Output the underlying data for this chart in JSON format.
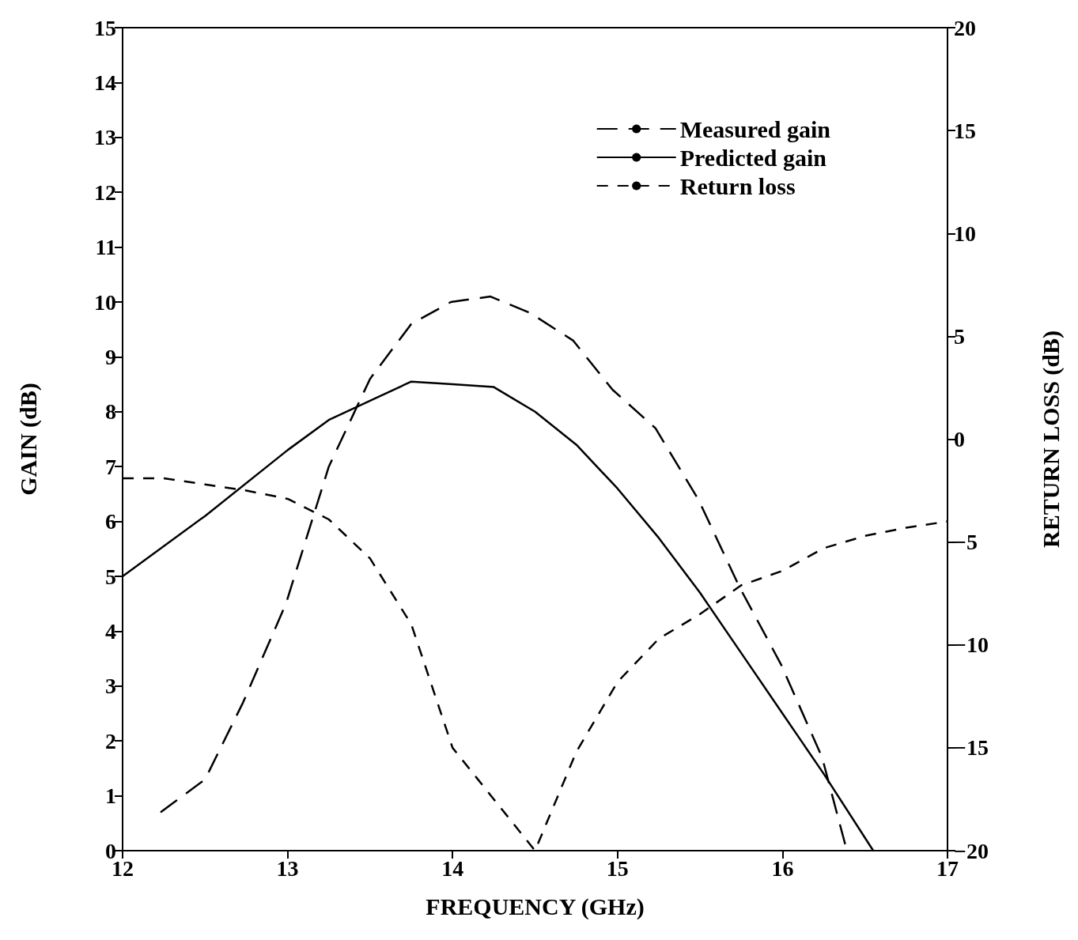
{
  "chart_data": {
    "type": "line",
    "xlabel": "FREQUENCY (GHz)",
    "ylabel": "GAIN (dB)",
    "y2label": "RETURN LOSS (dB)",
    "xlim": [
      12,
      17
    ],
    "xticks": [
      12,
      13,
      14,
      15,
      16,
      17
    ],
    "ylim": [
      0,
      15
    ],
    "yticks": [
      0,
      1,
      2,
      3,
      4,
      5,
      6,
      7,
      8,
      9,
      10,
      11,
      12,
      13,
      14,
      15
    ],
    "y2lim": [
      -20,
      20
    ],
    "y2ticks": [
      -20,
      -15,
      -10,
      -5,
      0,
      5,
      10,
      15,
      20
    ],
    "grid": false,
    "legend": "top right",
    "marker": "none",
    "series": [
      {
        "name": "Measured gain",
        "color": "#000000",
        "line_style": "dashed",
        "x": [
          12.23,
          12.5,
          12.73,
          12.99,
          13.25,
          13.5,
          13.75,
          13.99,
          14.23,
          14.47,
          14.73,
          14.97,
          15.23,
          15.49,
          15.74,
          15.99,
          16.24,
          16.39
        ],
        "values": [
          0.7,
          1.3,
          2.7,
          4.5,
          7.0,
          8.6,
          9.6,
          10.0,
          10.1,
          9.8,
          9.3,
          8.4,
          7.7,
          6.4,
          4.8,
          3.4,
          1.7,
          0
        ]
      },
      {
        "name": "Predicted gain",
        "color": "#000000",
        "line_style": "solid",
        "x": [
          12,
          12.5,
          13,
          13.25,
          13.5,
          13.75,
          14,
          14.25,
          14.5,
          14.75,
          15,
          15.25,
          15.5,
          15.75,
          16,
          16.25,
          16.55
        ],
        "values": [
          5.0,
          6.1,
          7.3,
          7.85,
          8.2,
          8.55,
          8.5,
          8.45,
          8.0,
          7.4,
          6.6,
          5.7,
          4.7,
          3.6,
          2.5,
          1.4,
          0
        ]
      },
      {
        "name": "Return loss",
        "color": "#000000",
        "line_style": "dotted",
        "axis": "y2",
        "x": [
          12,
          12.25,
          12.5,
          12.75,
          13,
          13.1,
          13.25,
          13.5,
          13.75,
          14,
          14.25,
          14.5,
          14.75,
          15,
          15.25,
          15.5,
          15.75,
          16,
          16.25,
          16.5,
          16.75,
          17
        ],
        "values": [
          -1.9,
          -1.9,
          -2.2,
          -2.5,
          -2.9,
          -3.3,
          -3.9,
          -5.8,
          -9.0,
          -15.0,
          -17.5,
          -20,
          -15.2,
          -11.8,
          -9.7,
          -8.5,
          -7.1,
          -6.4,
          -5.3,
          -4.7,
          -4.3,
          -4.0
        ]
      }
    ]
  }
}
